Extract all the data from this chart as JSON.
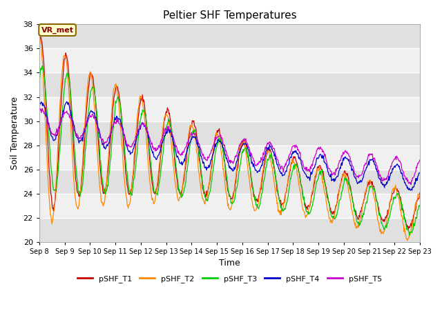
{
  "title": "Peltier SHF Temperatures",
  "xlabel": "Time",
  "ylabel": "Soil Temperature",
  "ylim": [
    20,
    38
  ],
  "yticks": [
    20,
    22,
    24,
    26,
    28,
    30,
    32,
    34,
    36,
    38
  ],
  "n_days": 15,
  "x_tick_labels": [
    "Sep 8",
    "Sep 9",
    "Sep 10",
    "Sep 11",
    "Sep 12",
    "Sep 13",
    "Sep 14",
    "Sep 15",
    "Sep 16",
    "Sep 17",
    "Sep 18",
    "Sep 19",
    "Sep 20",
    "Sep 21",
    "Sep 22",
    "Sep 23"
  ],
  "series_colors": [
    "#cc0000",
    "#ff8800",
    "#00cc00",
    "#0000cc",
    "#cc00cc"
  ],
  "series_names": [
    "pSHF_T1",
    "pSHF_T2",
    "pSHF_T3",
    "pSHF_T4",
    "pSHF_T5"
  ],
  "annotation_text": "VR_met",
  "bg_color": "#ffffff",
  "plot_bg_color": "#ffffff",
  "band_color_dark": "#e0e0e0",
  "band_color_light": "#f0f0f0",
  "title_fontsize": 11,
  "axis_label_fontsize": 9,
  "tick_fontsize": 8,
  "legend_fontsize": 8
}
